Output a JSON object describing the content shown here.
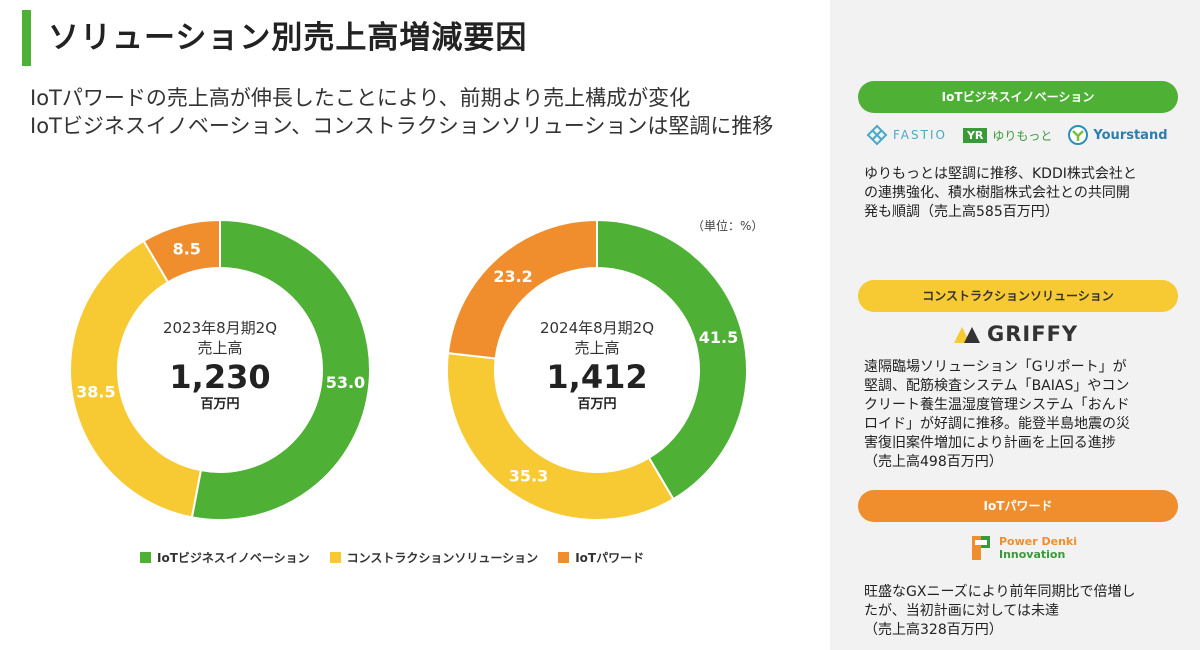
{
  "title": "ソリューション別売上高増減要因",
  "subtitle_lines": [
    "IoTパワードの売上高が伸長したことにより、前期より売上構成が変化",
    "IoTビジネスイノベーション、コンストラクションソリューションは堅調に推移"
  ],
  "unit_note": "（単位：%）",
  "colors": {
    "green": "#4eb035",
    "yellow": "#f7c932",
    "orange": "#f08e2e",
    "panel_bg": "#f2f2f2"
  },
  "chart_data": [
    {
      "type": "pie",
      "variant": "donut",
      "period_label": "2023年8月期2Q",
      "sales_label": "売上高",
      "total": "1,230",
      "total_unit": "百万円",
      "slices": [
        {
          "name": "IoTビジネスイノベーション",
          "value": 53.0,
          "label": "53.0",
          "color": "#4eb035"
        },
        {
          "name": "コンストラクションソリューション",
          "value": 38.5,
          "label": "38.5",
          "color": "#f7c932"
        },
        {
          "name": "IoTパワード",
          "value": 8.5,
          "label": "8.5",
          "color": "#f08e2e"
        }
      ]
    },
    {
      "type": "pie",
      "variant": "donut",
      "period_label": "2024年8月期2Q",
      "sales_label": "売上高",
      "total": "1,412",
      "total_unit": "百万円",
      "slices": [
        {
          "name": "IoTビジネスイノベーション",
          "value": 41.5,
          "label": "41.5",
          "color": "#4eb035"
        },
        {
          "name": "コンストラクションソリューション",
          "value": 35.3,
          "label": "35.3",
          "color": "#f7c932"
        },
        {
          "name": "IoTパワード",
          "value": 23.2,
          "label": "23.2",
          "color": "#f08e2e"
        }
      ]
    }
  ],
  "legend": [
    {
      "label": "IoTビジネスイノベーション",
      "color": "#4eb035"
    },
    {
      "label": "コンストラクションソリューション",
      "color": "#f7c932"
    },
    {
      "label": "IoTパワード",
      "color": "#f08e2e"
    }
  ],
  "panel": {
    "sections": [
      {
        "header": "IoTビジネスイノベーション",
        "color": "#4eb035",
        "logos": [
          {
            "text": "FASTIO",
            "icon": "fastio-logo-icon"
          },
          {
            "badge": "YR",
            "text": "ゆりもっと",
            "icon": "yurimotto-logo-icon"
          },
          {
            "text": "Yourstand",
            "icon": "yourstand-logo-icon"
          }
        ],
        "desc_lines": [
          "ゆりもっとは堅調に推移、KDDI株式会社と",
          "の連携強化、積水樹脂株式会社との共同開",
          "発も順調（売上高585百万円）"
        ]
      },
      {
        "header": "コンストラクションソリューション",
        "color": "#f7c932",
        "logos": [
          {
            "text": "GRIFFY",
            "icon": "griffy-logo-icon"
          }
        ],
        "desc_lines": [
          "遠隔臨場ソリューション「Gリポート」が",
          "堅調、配筋検査システム「BAIAS」やコン",
          "クリート養生温湿度管理システム「おんド",
          "ロイド」が好調に推移。能登半島地震の災",
          "害復旧案件増加により計画を上回る進捗",
          "（売上高498百万円）"
        ]
      },
      {
        "header": "IoTパワード",
        "color": "#f08e2e",
        "logos": [
          {
            "text_line1": "Power Denki",
            "text_line2": "Innovation",
            "icon": "power-denki-logo-icon"
          }
        ],
        "desc_lines": [
          "旺盛なGXニーズにより前年同期比で倍増し",
          "たが、当初計画に対しては未達",
          "（売上高328百万円）"
        ]
      }
    ]
  }
}
